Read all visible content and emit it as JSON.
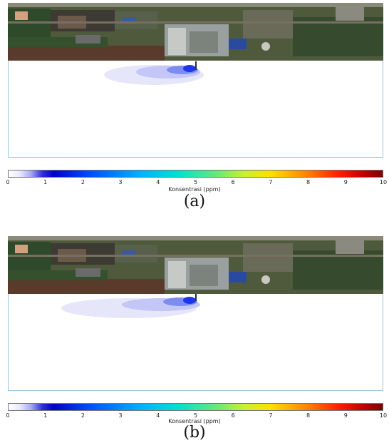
{
  "colorbar": {
    "label": "Konsentrasi (ppm)",
    "ticks": [
      "0",
      "1",
      "2",
      "3",
      "4",
      "5",
      "6",
      "7",
      "8",
      "9",
      "10"
    ],
    "range": [
      0,
      10
    ]
  },
  "panels": [
    {
      "caption": "(a)",
      "plume": "short"
    },
    {
      "caption": "(b)",
      "plume": "long"
    }
  ],
  "colors": {
    "border": "#9ac3dd",
    "plume_light": "#e4e4fb",
    "plume_mid": "#8f9cf0",
    "plume_core": "#1d3ce8",
    "river": "#5a3a2a"
  }
}
